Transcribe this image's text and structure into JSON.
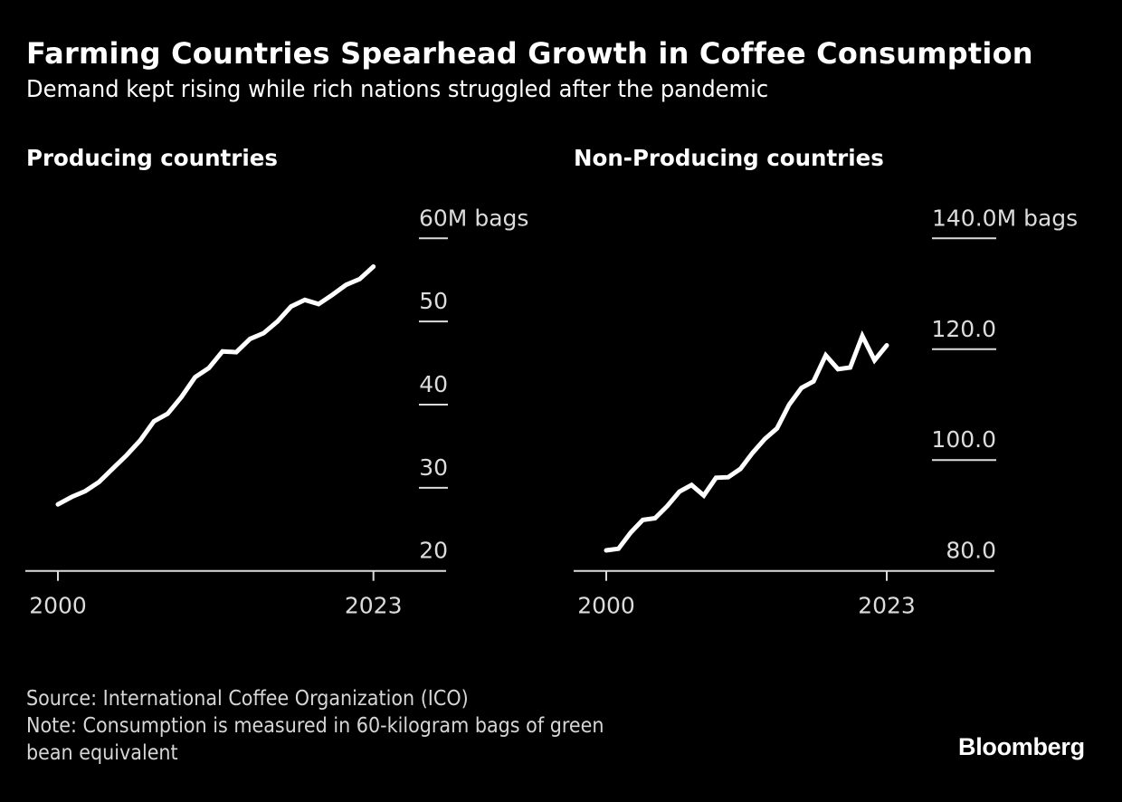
{
  "header": {
    "title": "Farming Countries Spearhead Growth in Coffee Consumption",
    "subtitle": "Demand kept rising while rich nations struggled after the pandemic"
  },
  "colors": {
    "background": "#000000",
    "line": "#ffffff",
    "axis": "#dcdcdc"
  },
  "chart_data": [
    {
      "type": "line",
      "title": "Producing countries",
      "xlabel": "",
      "ylabel": "M bags",
      "x": [
        2000,
        2001,
        2002,
        2003,
        2004,
        2005,
        2006,
        2007,
        2008,
        2009,
        2010,
        2011,
        2012,
        2013,
        2014,
        2015,
        2016,
        2017,
        2018,
        2019,
        2020,
        2021,
        2022,
        2023
      ],
      "series": [
        {
          "name": "Producing countries",
          "values": [
            28.0,
            28.9,
            29.6,
            30.7,
            32.3,
            33.9,
            35.7,
            38.0,
            38.9,
            40.9,
            43.3,
            44.4,
            46.4,
            46.3,
            47.9,
            48.6,
            50.0,
            51.8,
            52.6,
            52.1,
            53.2,
            54.4,
            55.1,
            56.6
          ]
        }
      ],
      "xlim": [
        2000,
        2023
      ],
      "ylim": [
        20,
        60
      ],
      "x_ticks": [
        2000,
        2023
      ],
      "x_tick_labels": [
        "2000",
        "2023"
      ],
      "y_ticks": [
        20,
        30,
        40,
        50,
        60
      ],
      "y_tick_labels": [
        "20",
        "30",
        "40",
        "50",
        "60M bags"
      ],
      "grid": false,
      "y_axis_side": "right"
    },
    {
      "type": "line",
      "title": "Non-Producing countries",
      "xlabel": "",
      "ylabel": "M bags",
      "x": [
        2000,
        2001,
        2002,
        2003,
        2004,
        2005,
        2006,
        2007,
        2008,
        2009,
        2010,
        2011,
        2012,
        2013,
        2014,
        2015,
        2016,
        2017,
        2018,
        2019,
        2020,
        2021,
        2022,
        2023
      ],
      "series": [
        {
          "name": "Non-Producing countries",
          "values": [
            83.7,
            84.0,
            86.9,
            89.2,
            89.5,
            91.7,
            94.3,
            95.5,
            93.6,
            96.8,
            96.9,
            98.4,
            101.3,
            103.8,
            105.7,
            110.0,
            113.0,
            114.2,
            118.9,
            116.4,
            116.7,
            122.4,
            118.0,
            120.7
          ]
        }
      ],
      "xlim": [
        2000,
        2023
      ],
      "ylim": [
        80,
        140
      ],
      "x_ticks": [
        2000,
        2023
      ],
      "x_tick_labels": [
        "2000",
        "2023"
      ],
      "y_ticks": [
        80,
        100,
        120,
        140
      ],
      "y_tick_labels": [
        "80.0",
        "100.0",
        "120.0",
        "140.0M bags"
      ],
      "grid": false,
      "y_axis_side": "right"
    }
  ],
  "footer": {
    "source": "Source: International Coffee Organization (ICO)",
    "note_line1": "Note: Consumption is measured in 60-kilogram bags of green",
    "note_line2": "bean equivalent"
  },
  "branding": {
    "logo": "Bloomberg"
  }
}
